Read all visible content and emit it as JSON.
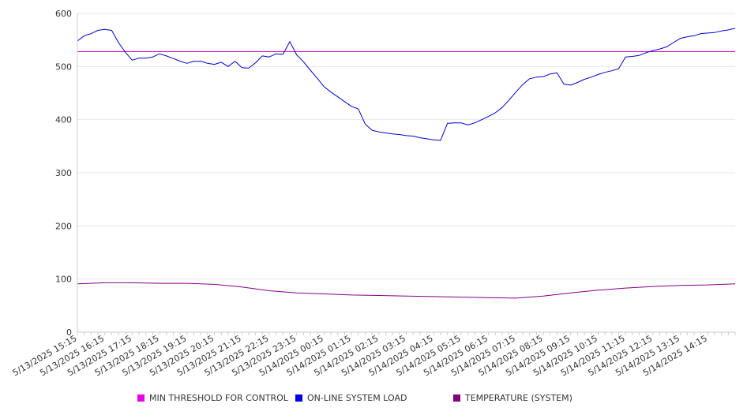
{
  "chart_data": {
    "type": "line",
    "title": "",
    "xlabel": "",
    "ylabel": "",
    "ylim": [
      0,
      600
    ],
    "yticks": [
      0,
      100,
      200,
      300,
      400,
      500,
      600
    ],
    "grid": true,
    "legend_position": "bottom",
    "x_tick_labels": [
      "5/13/2025 15:15",
      "5/13/2025 16:15",
      "5/13/2025 17:15",
      "5/13/2025 18:15",
      "5/13/2025 19:15",
      "5/13/2025 20:15",
      "5/13/2025 21:15",
      "5/13/2025 22:15",
      "5/13/2025 23:15",
      "5/14/2025 00:15",
      "5/14/2025 01:15",
      "5/14/2025 02:15",
      "5/14/2025 03:15",
      "5/14/2025 04:15",
      "5/14/2025 05:15",
      "5/14/2025 06:15",
      "5/14/2025 07:15",
      "5/14/2025 08:15",
      "5/14/2025 09:15",
      "5/14/2025 10:15",
      "5/14/2025 11:15",
      "5/14/2025 12:15",
      "5/14/2025 13:15",
      "5/14/2025 14:15"
    ],
    "series": [
      {
        "name": "MIN THRESHOLD FOR CONTROL",
        "color": "#cc00cc",
        "x": [
          "5/13/2025 15:15",
          "5/14/2025 15:15"
        ],
        "values": [
          528,
          528
        ]
      },
      {
        "name": "ON-LINE SYSTEM LOAD",
        "color": "#0000cc",
        "x": [
          "5/13/2025 15:15",
          "5/13/2025 15:30",
          "5/13/2025 15:45",
          "5/13/2025 16:00",
          "5/13/2025 16:15",
          "5/13/2025 16:30",
          "5/13/2025 16:45",
          "5/13/2025 17:00",
          "5/13/2025 17:15",
          "5/13/2025 17:30",
          "5/13/2025 17:45",
          "5/13/2025 18:00",
          "5/13/2025 18:15",
          "5/13/2025 18:30",
          "5/13/2025 18:45",
          "5/13/2025 19:00",
          "5/13/2025 19:15",
          "5/13/2025 19:30",
          "5/13/2025 19:45",
          "5/13/2025 20:00",
          "5/13/2025 20:15",
          "5/13/2025 20:30",
          "5/13/2025 20:45",
          "5/13/2025 21:00",
          "5/13/2025 21:15",
          "5/13/2025 21:30",
          "5/13/2025 21:45",
          "5/13/2025 22:00",
          "5/13/2025 22:15",
          "5/13/2025 22:30",
          "5/13/2025 22:45",
          "5/13/2025 23:00",
          "5/13/2025 23:15",
          "5/13/2025 23:30",
          "5/13/2025 23:45",
          "5/14/2025 00:00",
          "5/14/2025 00:15",
          "5/14/2025 00:30",
          "5/14/2025 00:45",
          "5/14/2025 01:00",
          "5/14/2025 01:15",
          "5/14/2025 01:30",
          "5/14/2025 01:45",
          "5/14/2025 02:00",
          "5/14/2025 02:15",
          "5/14/2025 02:30",
          "5/14/2025 02:45",
          "5/14/2025 03:00",
          "5/14/2025 03:15",
          "5/14/2025 03:30",
          "5/14/2025 03:45",
          "5/14/2025 04:00",
          "5/14/2025 04:15",
          "5/14/2025 04:30",
          "5/14/2025 04:45",
          "5/14/2025 05:00",
          "5/14/2025 05:15",
          "5/14/2025 05:30",
          "5/14/2025 05:45",
          "5/14/2025 06:00",
          "5/14/2025 06:15",
          "5/14/2025 06:30",
          "5/14/2025 06:45",
          "5/14/2025 07:00",
          "5/14/2025 07:15",
          "5/14/2025 07:30",
          "5/14/2025 07:45",
          "5/14/2025 08:00",
          "5/14/2025 08:15",
          "5/14/2025 08:30",
          "5/14/2025 08:45",
          "5/14/2025 09:00",
          "5/14/2025 09:15",
          "5/14/2025 09:30",
          "5/14/2025 09:45",
          "5/14/2025 10:00",
          "5/14/2025 10:15",
          "5/14/2025 10:30",
          "5/14/2025 10:45",
          "5/14/2025 11:00",
          "5/14/2025 11:15",
          "5/14/2025 11:30",
          "5/14/2025 11:45",
          "5/14/2025 12:00",
          "5/14/2025 12:15",
          "5/14/2025 12:30",
          "5/14/2025 12:45",
          "5/14/2025 13:00",
          "5/14/2025 13:15",
          "5/14/2025 13:30",
          "5/14/2025 13:45",
          "5/14/2025 14:00",
          "5/14/2025 14:15",
          "5/14/2025 14:30",
          "5/14/2025 14:45",
          "5/14/2025 15:00",
          "5/14/2025 15:15"
        ],
        "values": [
          548,
          558,
          562,
          568,
          570,
          568,
          545,
          527,
          512,
          516,
          516,
          518,
          524,
          520,
          515,
          510,
          506,
          510,
          510,
          506,
          504,
          508,
          500,
          510,
          498,
          497,
          507,
          520,
          518,
          524,
          523,
          547,
          522,
          509,
          493,
          478,
          462,
          452,
          443,
          434,
          425,
          420,
          392,
          380,
          377,
          375,
          373,
          372,
          370,
          369,
          366,
          364,
          362,
          361,
          393,
          394,
          394,
          390,
          394,
          400,
          406,
          413,
          423,
          437,
          452,
          466,
          477,
          480,
          481,
          486,
          488,
          467,
          465,
          470,
          476,
          480,
          485,
          489,
          492,
          496,
          518,
          519,
          521,
          526,
          530,
          533,
          537,
          545,
          553,
          556,
          558,
          562,
          563,
          564,
          567,
          569,
          572
        ]
      },
      {
        "name": "TEMPERATURE (SYSTEM)",
        "color": "#800080",
        "x": [
          "5/13/2025 15:15",
          "5/13/2025 16:15",
          "5/13/2025 17:15",
          "5/13/2025 18:15",
          "5/13/2025 19:15",
          "5/13/2025 20:15",
          "5/13/2025 21:15",
          "5/13/2025 22:15",
          "5/13/2025 23:15",
          "5/14/2025 00:15",
          "5/14/2025 01:15",
          "5/14/2025 02:15",
          "5/14/2025 03:15",
          "5/14/2025 04:15",
          "5/14/2025 05:15",
          "5/14/2025 06:15",
          "5/14/2025 07:15",
          "5/14/2025 08:15",
          "5/14/2025 09:15",
          "5/14/2025 10:15",
          "5/14/2025 11:15",
          "5/14/2025 12:15",
          "5/14/2025 13:15",
          "5/14/2025 14:15",
          "5/14/2025 15:15"
        ],
        "values": [
          91,
          93,
          93,
          92,
          92,
          90,
          85,
          78,
          74,
          72,
          70,
          69,
          68,
          67,
          66,
          65,
          64,
          68,
          74,
          79,
          83,
          86,
          88,
          89,
          91
        ]
      }
    ]
  }
}
